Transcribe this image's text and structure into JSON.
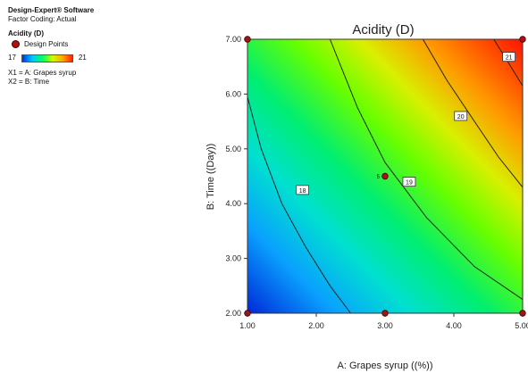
{
  "software": {
    "title": "Design-Expert® Software",
    "coding": "Factor Coding: Actual"
  },
  "response": {
    "name": "Acidity (D)",
    "points_label": "Design Points",
    "color_min": "17",
    "color_max": "21"
  },
  "factors": {
    "x1": "X1 = A: Grapes syrup",
    "x2": "X2 = B: Time"
  },
  "colors": {
    "low": "#0033dd",
    "high": "#ff1a00",
    "contour": "#222222",
    "point": "#b01010"
  },
  "chart_data": {
    "type": "heatmap",
    "subtype": "contour",
    "title": "Acidity (D)",
    "xlabel": "A: Grapes syrup ((%))",
    "ylabel": "B: Time ((Day))",
    "xlim": [
      1,
      5
    ],
    "ylim": [
      2,
      7
    ],
    "xticks": [
      "1.00",
      "2.00",
      "3.00",
      "4.00",
      "5.00"
    ],
    "yticks": [
      "2.00",
      "3.00",
      "4.00",
      "5.00",
      "6.00",
      "7.00"
    ],
    "zlim": [
      17,
      21
    ],
    "contours": [
      {
        "level": "18",
        "points": [
          [
            1.0,
            5.95
          ],
          [
            1.2,
            5.0
          ],
          [
            1.5,
            4.0
          ],
          [
            1.85,
            3.2
          ],
          [
            2.2,
            2.5
          ],
          [
            2.5,
            2.0
          ]
        ]
      },
      {
        "level": "19",
        "points": [
          [
            2.2,
            7.0
          ],
          [
            2.6,
            5.75
          ],
          [
            3.0,
            4.75
          ],
          [
            3.6,
            3.75
          ],
          [
            4.3,
            2.85
          ],
          [
            5.0,
            2.25
          ]
        ]
      },
      {
        "level": "20",
        "points": [
          [
            3.55,
            7.0
          ],
          [
            3.9,
            6.25
          ],
          [
            4.3,
            5.5
          ],
          [
            4.65,
            4.85
          ],
          [
            5.0,
            4.3
          ]
        ]
      },
      {
        "level": "21",
        "points": [
          [
            4.58,
            7.0
          ],
          [
            4.78,
            6.6
          ],
          [
            5.0,
            6.15
          ]
        ]
      }
    ],
    "contour_labels": [
      {
        "text": "18",
        "x": 1.8,
        "y": 4.25
      },
      {
        "text": "19",
        "x": 3.35,
        "y": 4.4
      },
      {
        "text": "20",
        "x": 4.1,
        "y": 5.6
      },
      {
        "text": "21",
        "x": 4.8,
        "y": 6.68
      }
    ],
    "design_points": [
      {
        "x": 1.0,
        "y": 2.0
      },
      {
        "x": 3.0,
        "y": 2.0
      },
      {
        "x": 5.0,
        "y": 2.0
      },
      {
        "x": 1.0,
        "y": 7.0
      },
      {
        "x": 5.0,
        "y": 7.0
      },
      {
        "x": 3.0,
        "y": 4.5,
        "label": "5"
      }
    ]
  }
}
